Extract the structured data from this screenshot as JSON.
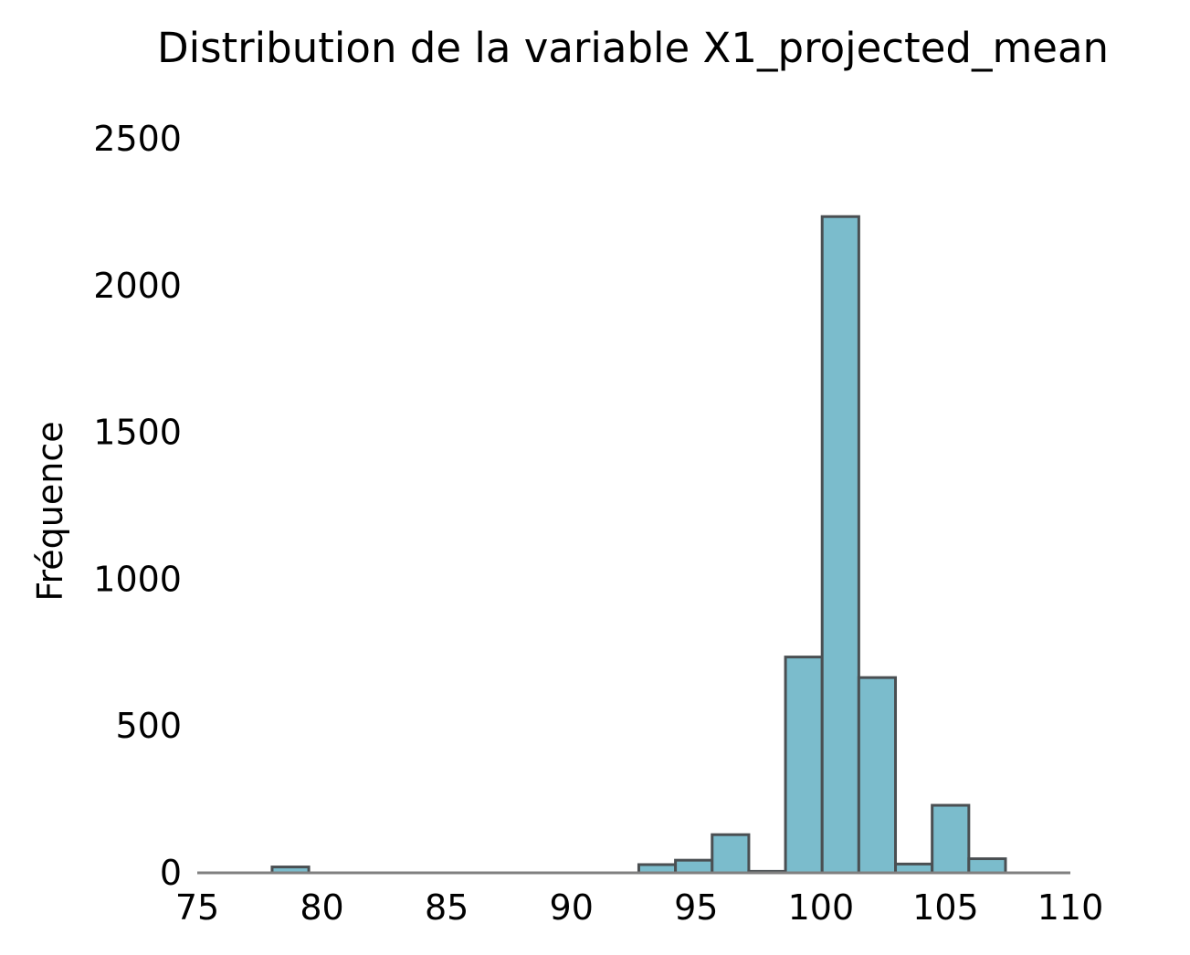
{
  "chart_data": {
    "type": "bar",
    "subtype": "histogram",
    "title": "Distribution de la variable X1_projected_mean",
    "xlabel": "",
    "ylabel": "Fréquence",
    "xlim": [
      75,
      110
    ],
    "ylim": [
      0,
      2500
    ],
    "x_ticks": [
      75,
      80,
      85,
      90,
      95,
      100,
      105,
      110
    ],
    "y_ticks": [
      0,
      500,
      1000,
      1500,
      2000,
      2500
    ],
    "grid": false,
    "bin_width": 1.47,
    "bins": [
      {
        "x0": 78.0,
        "x1": 79.47,
        "count": 20
      },
      {
        "x0": 79.47,
        "x1": 80.94,
        "count": 0
      },
      {
        "x0": 80.94,
        "x1": 82.41,
        "count": 0
      },
      {
        "x0": 82.41,
        "x1": 83.88,
        "count": 0
      },
      {
        "x0": 83.88,
        "x1": 85.35,
        "count": 0
      },
      {
        "x0": 85.35,
        "x1": 86.82,
        "count": 0
      },
      {
        "x0": 86.82,
        "x1": 88.29,
        "count": 0
      },
      {
        "x0": 88.29,
        "x1": 89.76,
        "count": 0
      },
      {
        "x0": 89.76,
        "x1": 91.23,
        "count": 0
      },
      {
        "x0": 91.23,
        "x1": 92.7,
        "count": 0
      },
      {
        "x0": 92.7,
        "x1": 94.17,
        "count": 28
      },
      {
        "x0": 94.17,
        "x1": 95.64,
        "count": 43
      },
      {
        "x0": 95.64,
        "x1": 97.11,
        "count": 130
      },
      {
        "x0": 97.11,
        "x1": 98.58,
        "count": 5
      },
      {
        "x0": 98.58,
        "x1": 100.05,
        "count": 735
      },
      {
        "x0": 100.05,
        "x1": 101.52,
        "count": 2235
      },
      {
        "x0": 101.52,
        "x1": 102.99,
        "count": 665
      },
      {
        "x0": 102.99,
        "x1": 104.46,
        "count": 30
      },
      {
        "x0": 104.46,
        "x1": 105.93,
        "count": 230
      },
      {
        "x0": 105.93,
        "x1": 107.4,
        "count": 48
      }
    ],
    "colors": {
      "bar_fill": "#7bbccc",
      "bar_edge": "#4a4f52",
      "baseline": "#808080"
    }
  }
}
